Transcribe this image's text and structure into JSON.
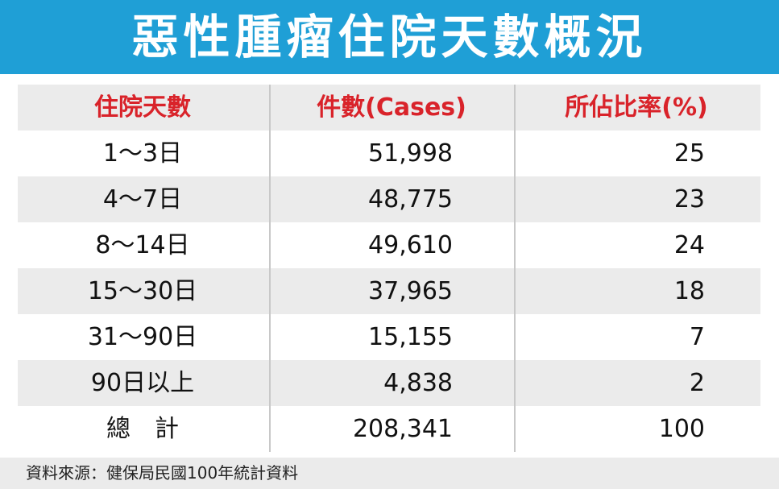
{
  "title": "惡性腫瘤住院天數概況",
  "colors": {
    "title_bg": "#1f9fd6",
    "title_text": "#ffffff",
    "header_text": "#d9232a",
    "row_shade": "#ebebeb"
  },
  "chart_data": {
    "type": "table",
    "title": "惡性腫瘤住院天數概況",
    "columns": [
      "住院天數",
      "件數(Cases)",
      "所佔比率(%)"
    ],
    "rows": [
      [
        "1～3日",
        "51,998",
        "25"
      ],
      [
        "4～7日",
        "48,775",
        "23"
      ],
      [
        "8～14日",
        "49,610",
        "24"
      ],
      [
        "15～30日",
        "37,965",
        "18"
      ],
      [
        "31～90日",
        "15,155",
        "7"
      ],
      [
        "90日以上",
        "4,838",
        "2"
      ],
      [
        "總　計",
        "208,341",
        "100"
      ]
    ],
    "source": "資料來源：健保局民國100年統計資料"
  }
}
